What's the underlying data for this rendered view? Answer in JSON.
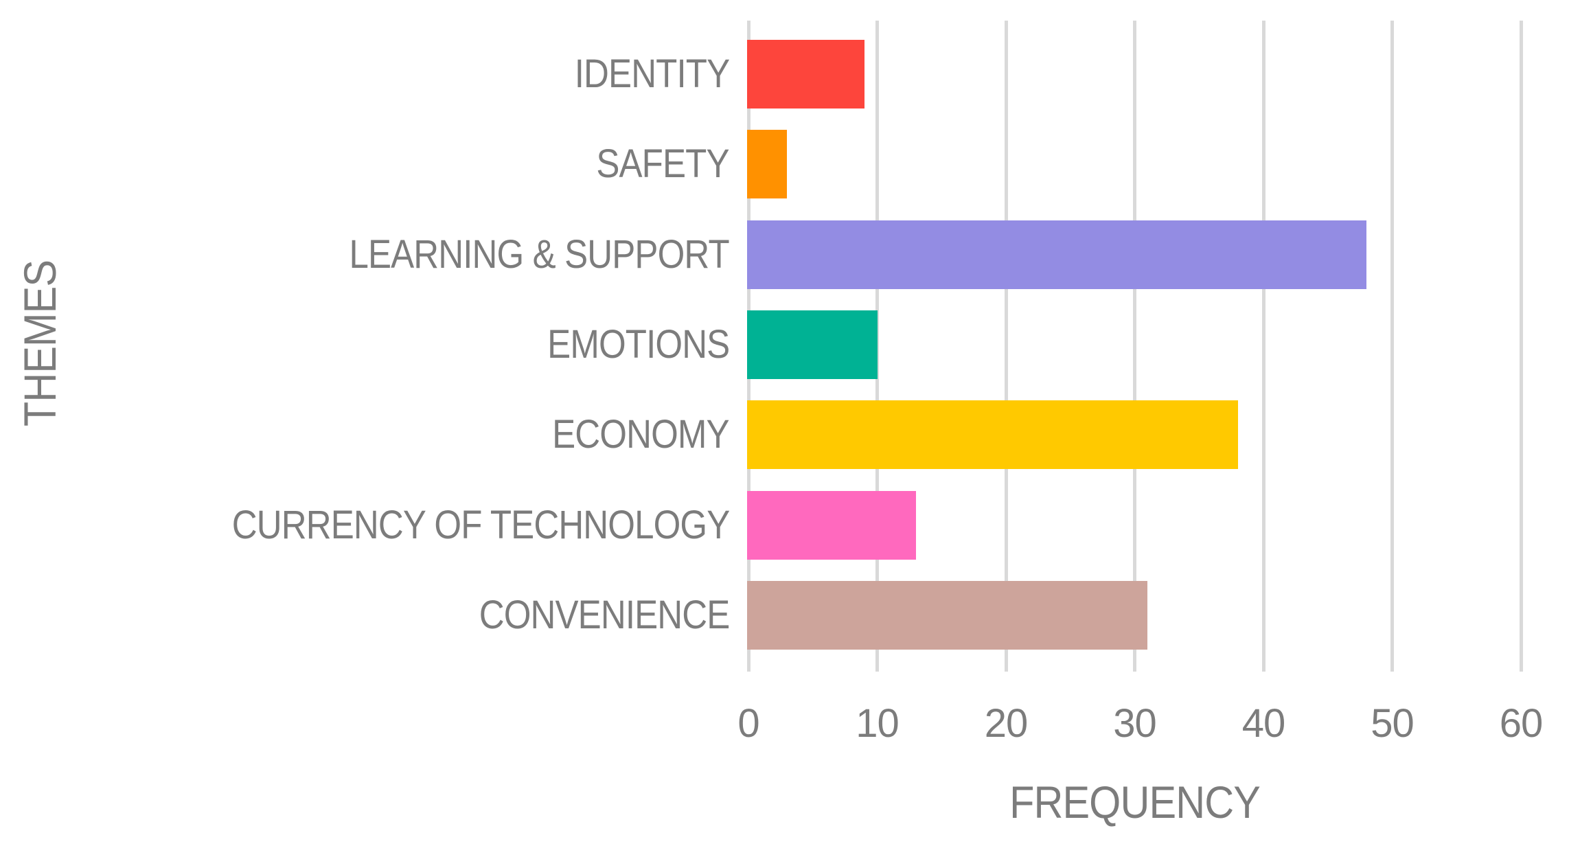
{
  "chart_data": {
    "type": "bar",
    "orientation": "horizontal",
    "xlabel": "FREQUENCY",
    "ylabel": "THEMES",
    "xlim": [
      0,
      60
    ],
    "xticks": [
      "0",
      "10",
      "20",
      "30",
      "40",
      "50",
      "60"
    ],
    "grid": "vertical-gridlines-on",
    "legend": "none",
    "categories": [
      "IDENTITY",
      "SAFETY",
      "LEARNING & SUPPORT",
      "EMOTIONS",
      "ECONOMY",
      "CURRENCY OF TECHNOLOGY",
      "CONVENIENCE"
    ],
    "values": [
      9,
      3,
      48,
      10,
      38,
      13,
      31
    ],
    "bar_colors": [
      "#fd453c",
      "#ff9100",
      "#938ce3",
      "#00b294",
      "#ffc900",
      "#ff69be",
      "#cda49b"
    ]
  },
  "colors": {
    "background": "#ffffff",
    "gridline": "#d9d9d9",
    "axis_text": "#7c7c7c"
  }
}
